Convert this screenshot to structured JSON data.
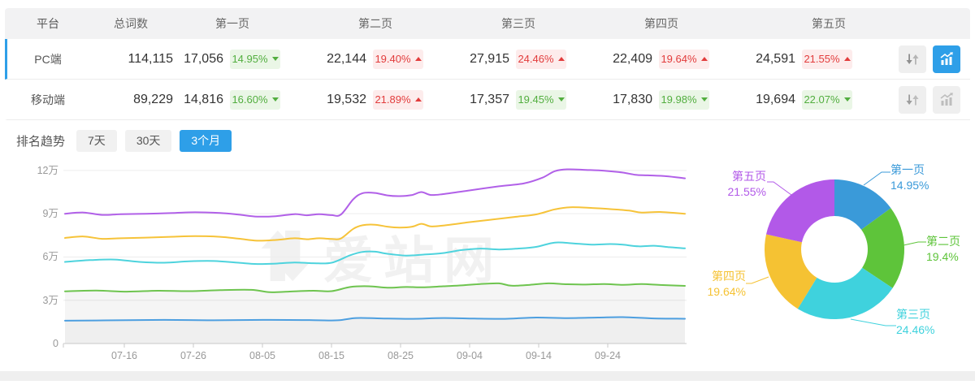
{
  "colors": {
    "accent": "#2e9fe8",
    "up_red": "#e23c3c",
    "down_green": "#52ae3f",
    "badge_red_bg": "#fdecec",
    "badge_green_bg": "#eaf6e6",
    "header_bg": "#f2f2f3"
  },
  "table": {
    "headers": [
      "平台",
      "总词数",
      "第一页",
      "第二页",
      "第三页",
      "第四页",
      "第五页"
    ],
    "rows": [
      {
        "platform": "PC端",
        "total": "114,115",
        "selected": true,
        "pages": [
          {
            "value": "17,056",
            "pct": "14.95%",
            "dir": "down"
          },
          {
            "value": "22,144",
            "pct": "19.40%",
            "dir": "up"
          },
          {
            "value": "27,915",
            "pct": "24.46%",
            "dir": "up"
          },
          {
            "value": "22,409",
            "pct": "19.64%",
            "dir": "up"
          },
          {
            "value": "24,591",
            "pct": "21.55%",
            "dir": "up"
          }
        ]
      },
      {
        "platform": "移动端",
        "total": "89,229",
        "selected": false,
        "pages": [
          {
            "value": "14,816",
            "pct": "16.60%",
            "dir": "down"
          },
          {
            "value": "19,532",
            "pct": "21.89%",
            "dir": "up"
          },
          {
            "value": "17,357",
            "pct": "19.45%",
            "dir": "down"
          },
          {
            "value": "17,830",
            "pct": "19.98%",
            "dir": "down"
          },
          {
            "value": "19,694",
            "pct": "22.07%",
            "dir": "down"
          }
        ]
      }
    ]
  },
  "trend": {
    "label": "排名趋势",
    "tabs": [
      {
        "label": "7天",
        "active": false
      },
      {
        "label": "30天",
        "active": false
      },
      {
        "label": "3个月",
        "active": true
      }
    ]
  },
  "watermark": {
    "text": "爱站网"
  },
  "chart_data": [
    {
      "type": "line",
      "title": "排名趋势 3个月",
      "x_tick_labels": [
        "07-16",
        "07-26",
        "08-05",
        "08-15",
        "08-25",
        "09-04",
        "09-14",
        "09-24"
      ],
      "y_tick_labels": [
        "0",
        "3万",
        "6万",
        "9万",
        "12万"
      ],
      "ylim": [
        0,
        12
      ],
      "y_unit": "万",
      "grid": true,
      "legend_position": "none",
      "series": [
        {
          "name": "purple",
          "color": "#b160e8",
          "points": [
            [
              0,
              9.0
            ],
            [
              0.03,
              9.08
            ],
            [
              0.06,
              8.92
            ],
            [
              0.09,
              8.97
            ],
            [
              0.13,
              9.0
            ],
            [
              0.17,
              9.04
            ],
            [
              0.21,
              9.1
            ],
            [
              0.25,
              9.05
            ],
            [
              0.28,
              8.94
            ],
            [
              0.31,
              8.8
            ],
            [
              0.34,
              8.83
            ],
            [
              0.37,
              8.97
            ],
            [
              0.39,
              8.89
            ],
            [
              0.41,
              8.97
            ],
            [
              0.43,
              8.9
            ],
            [
              0.445,
              8.94
            ],
            [
              0.465,
              10.0
            ],
            [
              0.48,
              10.42
            ],
            [
              0.5,
              10.44
            ],
            [
              0.52,
              10.27
            ],
            [
              0.54,
              10.22
            ],
            [
              0.56,
              10.3
            ],
            [
              0.575,
              10.5
            ],
            [
              0.59,
              10.3
            ],
            [
              0.61,
              10.36
            ],
            [
              0.65,
              10.6
            ],
            [
              0.7,
              10.9
            ],
            [
              0.74,
              11.1
            ],
            [
              0.77,
              11.5
            ],
            [
              0.79,
              11.95
            ],
            [
              0.81,
              12.08
            ],
            [
              0.84,
              12.04
            ],
            [
              0.87,
              11.98
            ],
            [
              0.9,
              11.85
            ],
            [
              0.92,
              11.7
            ],
            [
              0.94,
              11.66
            ],
            [
              0.97,
              11.6
            ],
            [
              1,
              11.45
            ]
          ]
        },
        {
          "name": "yellow",
          "color": "#f6c339",
          "points": [
            [
              0,
              7.32
            ],
            [
              0.03,
              7.42
            ],
            [
              0.06,
              7.26
            ],
            [
              0.09,
              7.3
            ],
            [
              0.13,
              7.34
            ],
            [
              0.17,
              7.4
            ],
            [
              0.21,
              7.45
            ],
            [
              0.25,
              7.4
            ],
            [
              0.28,
              7.27
            ],
            [
              0.31,
              7.13
            ],
            [
              0.34,
              7.18
            ],
            [
              0.37,
              7.3
            ],
            [
              0.39,
              7.23
            ],
            [
              0.41,
              7.3
            ],
            [
              0.43,
              7.25
            ],
            [
              0.445,
              7.28
            ],
            [
              0.465,
              7.95
            ],
            [
              0.48,
              8.2
            ],
            [
              0.5,
              8.24
            ],
            [
              0.52,
              8.1
            ],
            [
              0.54,
              8.04
            ],
            [
              0.56,
              8.1
            ],
            [
              0.575,
              8.3
            ],
            [
              0.59,
              8.12
            ],
            [
              0.61,
              8.18
            ],
            [
              0.65,
              8.4
            ],
            [
              0.69,
              8.6
            ],
            [
              0.73,
              8.8
            ],
            [
              0.76,
              8.95
            ],
            [
              0.79,
              9.3
            ],
            [
              0.815,
              9.45
            ],
            [
              0.85,
              9.4
            ],
            [
              0.88,
              9.32
            ],
            [
              0.91,
              9.22
            ],
            [
              0.93,
              9.08
            ],
            [
              0.96,
              9.12
            ],
            [
              1,
              9.0
            ]
          ]
        },
        {
          "name": "cyan",
          "color": "#4ed3dd",
          "points": [
            [
              0,
              5.66
            ],
            [
              0.04,
              5.78
            ],
            [
              0.08,
              5.82
            ],
            [
              0.12,
              5.66
            ],
            [
              0.16,
              5.6
            ],
            [
              0.2,
              5.7
            ],
            [
              0.24,
              5.72
            ],
            [
              0.28,
              5.6
            ],
            [
              0.31,
              5.51
            ],
            [
              0.34,
              5.54
            ],
            [
              0.37,
              5.62
            ],
            [
              0.4,
              5.57
            ],
            [
              0.43,
              5.6
            ],
            [
              0.46,
              6.12
            ],
            [
              0.48,
              6.35
            ],
            [
              0.5,
              6.37
            ],
            [
              0.52,
              6.22
            ],
            [
              0.55,
              6.1
            ],
            [
              0.58,
              6.17
            ],
            [
              0.61,
              6.27
            ],
            [
              0.64,
              6.48
            ],
            [
              0.67,
              6.58
            ],
            [
              0.7,
              6.52
            ],
            [
              0.73,
              6.58
            ],
            [
              0.76,
              6.7
            ],
            [
              0.79,
              7.0
            ],
            [
              0.82,
              6.94
            ],
            [
              0.85,
              6.86
            ],
            [
              0.88,
              6.9
            ],
            [
              0.9,
              6.85
            ],
            [
              0.925,
              6.74
            ],
            [
              0.95,
              6.78
            ],
            [
              0.975,
              6.68
            ],
            [
              1,
              6.6
            ]
          ]
        },
        {
          "name": "green",
          "color": "#6ec44f",
          "area_fill": "rgba(0,0,0,0.04)",
          "points": [
            [
              0,
              3.62
            ],
            [
              0.05,
              3.67
            ],
            [
              0.1,
              3.6
            ],
            [
              0.15,
              3.66
            ],
            [
              0.2,
              3.63
            ],
            [
              0.25,
              3.7
            ],
            [
              0.3,
              3.72
            ],
            [
              0.33,
              3.56
            ],
            [
              0.36,
              3.6
            ],
            [
              0.4,
              3.66
            ],
            [
              0.43,
              3.63
            ],
            [
              0.46,
              3.92
            ],
            [
              0.49,
              3.97
            ],
            [
              0.52,
              3.87
            ],
            [
              0.55,
              3.92
            ],
            [
              0.58,
              3.9
            ],
            [
              0.61,
              3.97
            ],
            [
              0.64,
              4.03
            ],
            [
              0.67,
              4.13
            ],
            [
              0.7,
              4.17
            ],
            [
              0.72,
              4.01
            ],
            [
              0.75,
              4.07
            ],
            [
              0.78,
              4.17
            ],
            [
              0.81,
              4.11
            ],
            [
              0.84,
              4.09
            ],
            [
              0.87,
              4.13
            ],
            [
              0.9,
              4.07
            ],
            [
              0.93,
              4.12
            ],
            [
              0.96,
              4.06
            ],
            [
              1,
              4.0
            ]
          ]
        },
        {
          "name": "blue",
          "color": "#4d9fe0",
          "area_fill": "rgba(0,0,0,0.025)",
          "points": [
            [
              0,
              1.58
            ],
            [
              0.08,
              1.61
            ],
            [
              0.16,
              1.64
            ],
            [
              0.24,
              1.61
            ],
            [
              0.32,
              1.64
            ],
            [
              0.4,
              1.62
            ],
            [
              0.44,
              1.61
            ],
            [
              0.47,
              1.77
            ],
            [
              0.51,
              1.74
            ],
            [
              0.56,
              1.71
            ],
            [
              0.61,
              1.77
            ],
            [
              0.66,
              1.73
            ],
            [
              0.71,
              1.71
            ],
            [
              0.76,
              1.8
            ],
            [
              0.81,
              1.76
            ],
            [
              0.86,
              1.8
            ],
            [
              0.9,
              1.83
            ],
            [
              0.95,
              1.74
            ],
            [
              1,
              1.72
            ]
          ]
        }
      ]
    },
    {
      "type": "pie",
      "donut": true,
      "segments": [
        {
          "label": "第一页",
          "value": 14.95,
          "display": "14.95%",
          "color": "#3a9ad9"
        },
        {
          "label": "第二页",
          "value": 19.4,
          "display": "19.4%",
          "color": "#5ec43a"
        },
        {
          "label": "第三页",
          "value": 24.46,
          "display": "24.46%",
          "color": "#3fd2dd"
        },
        {
          "label": "第四页",
          "value": 19.64,
          "display": "19.64%",
          "color": "#f5c233"
        },
        {
          "label": "第五页",
          "value": 21.55,
          "display": "21.55%",
          "color": "#b259e8"
        }
      ]
    }
  ]
}
